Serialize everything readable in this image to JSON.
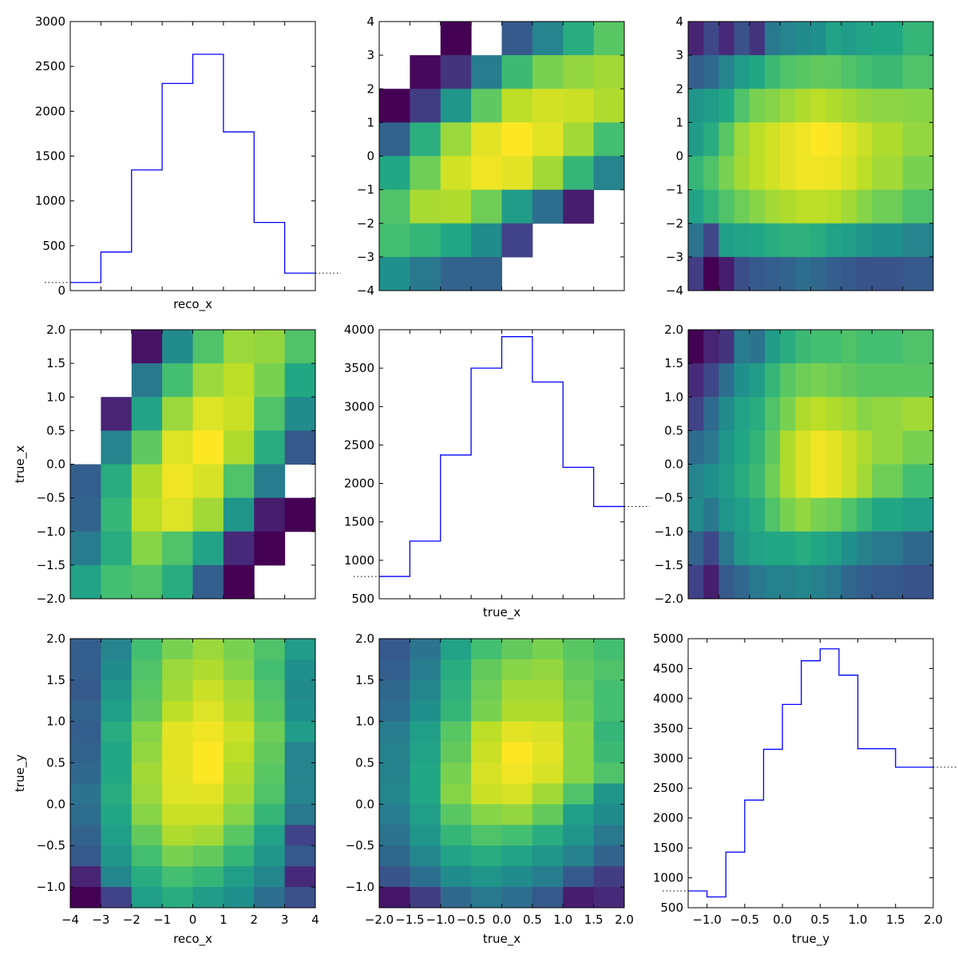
{
  "chart_data": [
    {
      "id": "p00",
      "type": "histogram",
      "xlabel": "reco_x",
      "ylabel": "",
      "xlim": [
        -4,
        4
      ],
      "ylim": [
        0,
        3000
      ],
      "show_x_ticklabels": false,
      "edges": [
        -4,
        -3,
        -2,
        -1,
        0,
        1,
        2,
        3,
        4
      ],
      "values": [
        90,
        430,
        1345,
        2310,
        2635,
        1770,
        760,
        195
      ],
      "overflow_left": 90,
      "overflow_right": 195,
      "yticks": [
        0,
        500,
        1000,
        1500,
        2000,
        2500,
        3000
      ],
      "ytick_labels": [
        "0",
        "500",
        "1000",
        "1500",
        "2000",
        "2500",
        "3000"
      ],
      "color": "#0000ff"
    },
    {
      "id": "p01",
      "type": "heatmap",
      "xlabel": "",
      "ylabel": "",
      "xlim": [
        -2,
        2
      ],
      "ylim": [
        -4,
        4
      ],
      "show_x_ticklabels": false,
      "yticks": [
        -4,
        -3,
        -2,
        -1,
        0,
        1,
        2,
        3,
        4
      ],
      "ytick_labels": [
        "−4",
        "−3",
        "−2",
        "−1",
        "0",
        "1",
        "2",
        "3",
        "4"
      ],
      "x_edges": [
        -2,
        -1.5,
        -1,
        -0.5,
        0,
        0.5,
        1,
        1.5,
        2
      ],
      "y_edges": [
        4,
        3,
        2,
        1,
        0,
        -1,
        -2,
        -3,
        -4
      ],
      "values": [
        [
          null,
          null,
          0.0,
          null,
          0.28,
          0.45,
          0.62,
          0.74
        ],
        [
          null,
          0.02,
          0.15,
          0.42,
          0.68,
          0.8,
          0.84,
          0.86
        ],
        [
          0.0,
          0.18,
          0.52,
          0.75,
          0.9,
          0.93,
          0.92,
          0.88
        ],
        [
          0.32,
          0.63,
          0.85,
          0.96,
          1.0,
          0.96,
          0.86,
          0.7
        ],
        [
          0.6,
          0.78,
          0.93,
          0.98,
          0.96,
          0.86,
          0.66,
          0.45
        ],
        [
          0.72,
          0.87,
          0.88,
          0.78,
          0.55,
          0.36,
          0.08,
          null
        ],
        [
          0.7,
          0.66,
          0.6,
          0.48,
          0.2,
          null,
          null,
          null
        ],
        [
          0.5,
          0.4,
          0.32,
          0.32,
          null,
          null,
          null,
          null
        ]
      ]
    },
    {
      "id": "p02",
      "type": "heatmap",
      "xlabel": "",
      "ylabel": "",
      "xlim": [
        -2,
        2
      ],
      "ylim": [
        -4,
        4
      ],
      "show_x_ticklabels": false,
      "yticks": [
        -4,
        -3,
        -2,
        -1,
        0,
        1,
        2,
        3,
        4
      ],
      "ytick_labels": [
        "−4",
        "−3",
        "−2",
        "−1",
        "0",
        "1",
        "2",
        "3",
        "4"
      ],
      "x_edges": [
        -2,
        -1.75,
        -1.5,
        -1.25,
        -1,
        -0.75,
        -0.5,
        -0.25,
        0,
        0.25,
        0.5,
        0.75,
        1,
        1.5,
        2
      ],
      "y_edges": [
        4,
        3,
        2,
        1,
        0,
        -1,
        -2,
        -3,
        -4
      ],
      "values": [
        [
          0.1,
          0.22,
          0.12,
          0.25,
          0.15,
          0.4,
          0.45,
          0.48,
          0.5,
          0.58,
          0.55,
          0.58,
          0.6,
          0.66
        ],
        [
          0.3,
          0.35,
          0.45,
          0.55,
          0.6,
          0.68,
          0.72,
          0.74,
          0.76,
          0.75,
          0.72,
          0.7,
          0.68,
          0.72
        ],
        [
          0.52,
          0.55,
          0.6,
          0.72,
          0.8,
          0.82,
          0.85,
          0.88,
          0.9,
          0.88,
          0.86,
          0.84,
          0.83,
          0.82
        ],
        [
          0.55,
          0.62,
          0.74,
          0.85,
          0.9,
          0.93,
          0.96,
          0.98,
          1.0,
          0.99,
          0.96,
          0.92,
          0.88,
          0.84
        ],
        [
          0.66,
          0.72,
          0.8,
          0.86,
          0.9,
          0.93,
          0.96,
          0.98,
          0.98,
          0.97,
          0.94,
          0.9,
          0.86,
          0.8
        ],
        [
          0.58,
          0.65,
          0.72,
          0.78,
          0.82,
          0.86,
          0.88,
          0.9,
          0.9,
          0.89,
          0.86,
          0.82,
          0.78,
          0.72
        ],
        [
          0.38,
          0.22,
          0.56,
          0.58,
          0.6,
          0.62,
          0.64,
          0.64,
          0.62,
          0.58,
          0.56,
          0.52,
          0.5,
          0.45
        ],
        [
          0.18,
          0.0,
          0.08,
          0.24,
          0.28,
          0.3,
          0.32,
          0.36,
          0.34,
          0.3,
          0.28,
          0.26,
          0.26,
          0.28
        ]
      ]
    },
    {
      "id": "p10",
      "type": "heatmap",
      "xlabel": "",
      "ylabel": "true_x",
      "xlim": [
        -4,
        4
      ],
      "ylim": [
        -2,
        2
      ],
      "show_x_ticklabels": false,
      "yticks": [
        -2,
        -1.5,
        -1,
        -0.5,
        0,
        0.5,
        1,
        1.5,
        2
      ],
      "ytick_labels": [
        "−2.0",
        "−1.5",
        "−1.0",
        "−0.5",
        "0.0",
        "0.5",
        "1.0",
        "1.5",
        "2.0"
      ],
      "x_edges": [
        -4,
        -3,
        -2,
        -1,
        0,
        1,
        2,
        3,
        4
      ],
      "y_edges": [
        2,
        1.5,
        1,
        0.5,
        0,
        -0.5,
        -1,
        -1.5,
        -2
      ],
      "values": [
        [
          null,
          null,
          0.05,
          0.48,
          0.72,
          0.85,
          0.84,
          0.72
        ],
        [
          null,
          null,
          0.4,
          0.7,
          0.85,
          0.9,
          0.8,
          0.6
        ],
        [
          null,
          0.1,
          0.58,
          0.85,
          0.95,
          0.92,
          0.72,
          0.48
        ],
        [
          null,
          0.45,
          0.75,
          0.95,
          1.0,
          0.88,
          0.62,
          0.28
        ],
        [
          0.3,
          0.62,
          0.88,
          0.98,
          0.94,
          0.72,
          0.42,
          null
        ],
        [
          0.32,
          0.66,
          0.9,
          0.95,
          0.86,
          0.52,
          0.08,
          0.0
        ],
        [
          0.42,
          0.62,
          0.82,
          0.72,
          0.58,
          0.12,
          0.0,
          null
        ],
        [
          0.58,
          0.7,
          0.72,
          0.62,
          0.3,
          0.0,
          null,
          null
        ]
      ]
    },
    {
      "id": "p11",
      "type": "histogram",
      "xlabel": "true_x",
      "ylabel": "",
      "xlim": [
        -2,
        2
      ],
      "ylim": [
        500,
        4000
      ],
      "show_x_ticklabels": false,
      "edges": [
        -2,
        -1.5,
        -1,
        -0.5,
        0,
        0.5,
        1,
        1.5,
        2
      ],
      "values": [
        790,
        1250,
        2370,
        3500,
        3910,
        3320,
        2210,
        1700
      ],
      "overflow_left": 790,
      "overflow_right": 1700,
      "yticks": [
        500,
        1000,
        1500,
        2000,
        2500,
        3000,
        3500,
        4000
      ],
      "ytick_labels": [
        "500",
        "1000",
        "1500",
        "2000",
        "2500",
        "3000",
        "3500",
        "4000"
      ],
      "color": "#0000ff"
    },
    {
      "id": "p12",
      "type": "heatmap",
      "xlabel": "",
      "ylabel": "",
      "xlim": [
        -2,
        2
      ],
      "ylim": [
        -2,
        2
      ],
      "show_x_ticklabels": false,
      "yticks": [
        -2,
        -1.5,
        -1,
        -0.5,
        0,
        0.5,
        1,
        1.5,
        2
      ],
      "ytick_labels": [
        "−2.0",
        "−1.5",
        "−1.0",
        "−0.5",
        "0.0",
        "0.5",
        "1.0",
        "1.5",
        "2.0"
      ],
      "x_edges": [
        -2,
        -1.75,
        -1.5,
        -1.25,
        -1,
        -0.75,
        -0.5,
        -0.25,
        0,
        0.25,
        0.5,
        0.75,
        1,
        1.5,
        2
      ],
      "y_edges": [
        2,
        1.5,
        1,
        0.5,
        0,
        -0.5,
        -1,
        -1.5,
        -2
      ],
      "values": [
        [
          0.0,
          0.1,
          0.15,
          0.42,
          0.38,
          0.55,
          0.62,
          0.68,
          0.7,
          0.7,
          0.72,
          0.7,
          0.7,
          0.72
        ],
        [
          0.12,
          0.22,
          0.36,
          0.5,
          0.55,
          0.66,
          0.74,
          0.78,
          0.8,
          0.78,
          0.76,
          0.74,
          0.74,
          0.74
        ],
        [
          0.2,
          0.35,
          0.48,
          0.58,
          0.62,
          0.72,
          0.8,
          0.88,
          0.9,
          0.88,
          0.86,
          0.82,
          0.84,
          0.86
        ],
        [
          0.35,
          0.4,
          0.52,
          0.6,
          0.65,
          0.75,
          0.88,
          0.94,
          0.98,
          0.96,
          0.92,
          0.88,
          0.84,
          0.8
        ],
        [
          0.45,
          0.5,
          0.55,
          0.62,
          0.68,
          0.78,
          0.88,
          0.94,
          0.98,
          0.96,
          0.92,
          0.86,
          0.78,
          0.7
        ],
        [
          0.48,
          0.4,
          0.52,
          0.56,
          0.62,
          0.72,
          0.8,
          0.84,
          0.8,
          0.78,
          0.72,
          0.66,
          0.6,
          0.56
        ],
        [
          0.32,
          0.22,
          0.4,
          0.54,
          0.58,
          0.6,
          0.6,
          0.62,
          0.6,
          0.56,
          0.5,
          0.44,
          0.4,
          0.34
        ],
        [
          0.2,
          0.08,
          0.28,
          0.34,
          0.4,
          0.44,
          0.44,
          0.46,
          0.44,
          0.4,
          0.34,
          0.3,
          0.28,
          0.26
        ]
      ]
    },
    {
      "id": "p20",
      "type": "heatmap",
      "xlabel": "reco_x",
      "ylabel": "true_y",
      "xlim": [
        -4,
        4
      ],
      "ylim": [
        -1.25,
        2
      ],
      "show_x_ticklabels": true,
      "xticks": [
        -4,
        -3,
        -2,
        -1,
        0,
        1,
        2,
        3,
        4
      ],
      "xtick_labels": [
        "−4",
        "−3",
        "−2",
        "−1",
        "0",
        "1",
        "2",
        "3",
        "4"
      ],
      "yticks": [
        -1,
        -0.5,
        0,
        0.5,
        1,
        1.5,
        2
      ],
      "ytick_labels": [
        "−1.0",
        "−0.5",
        "0.0",
        "0.5",
        "1.0",
        "1.5",
        "2.0"
      ],
      "x_edges": [
        -4,
        -3,
        -2,
        -1,
        0,
        1,
        2,
        3,
        4
      ],
      "y_edges": [
        2,
        1.75,
        1.5,
        1.25,
        1,
        0.75,
        0.5,
        0.25,
        0,
        -0.25,
        -0.5,
        -0.75,
        -1,
        -1.25
      ],
      "values": [
        [
          0.3,
          0.45,
          0.7,
          0.8,
          0.85,
          0.8,
          0.72,
          0.55
        ],
        [
          0.3,
          0.48,
          0.72,
          0.85,
          0.88,
          0.82,
          0.7,
          0.5
        ],
        [
          0.28,
          0.52,
          0.74,
          0.86,
          0.92,
          0.86,
          0.72,
          0.48
        ],
        [
          0.32,
          0.56,
          0.76,
          0.9,
          0.95,
          0.88,
          0.74,
          0.5
        ],
        [
          0.3,
          0.62,
          0.82,
          0.96,
          0.98,
          0.92,
          0.78,
          0.55
        ],
        [
          0.32,
          0.6,
          0.84,
          0.96,
          1.0,
          0.9,
          0.76,
          0.45
        ],
        [
          0.34,
          0.6,
          0.86,
          0.96,
          1.0,
          0.88,
          0.74,
          0.45
        ],
        [
          0.38,
          0.62,
          0.85,
          0.95,
          0.96,
          0.86,
          0.72,
          0.45
        ],
        [
          0.36,
          0.6,
          0.82,
          0.92,
          0.92,
          0.82,
          0.66,
          0.4
        ],
        [
          0.32,
          0.56,
          0.76,
          0.88,
          0.86,
          0.74,
          0.58,
          0.2
        ],
        [
          0.28,
          0.52,
          0.7,
          0.8,
          0.76,
          0.66,
          0.52,
          0.28
        ],
        [
          0.1,
          0.46,
          0.62,
          0.7,
          0.66,
          0.56,
          0.46,
          0.12
        ],
        [
          0.0,
          0.2,
          0.56,
          0.62,
          0.55,
          0.5,
          0.36,
          0.25
        ],
        [
          0.24,
          0.34,
          0.5,
          0.56,
          0.5,
          0.45,
          0.34,
          0.1
        ]
      ]
    },
    {
      "id": "p21",
      "type": "heatmap",
      "xlabel": "true_x",
      "ylabel": "",
      "xlim": [
        -2,
        2
      ],
      "ylim": [
        -1.25,
        2
      ],
      "show_x_ticklabels": true,
      "xticks": [
        -2,
        -1.5,
        -1,
        -0.5,
        0,
        0.5,
        1,
        1.5,
        2
      ],
      "xtick_labels": [
        "−2.0",
        "−1.5",
        "−1.0",
        "−0.5",
        "0.0",
        "0.5",
        "1.0",
        "1.5",
        "2.0"
      ],
      "yticks": [
        -1,
        -0.5,
        0,
        0.5,
        1,
        1.5,
        2
      ],
      "ytick_labels": [
        "−1.0",
        "−0.5",
        "0.0",
        "0.5",
        "1.0",
        "1.5",
        "2.0"
      ],
      "x_edges": [
        -2,
        -1.5,
        -1,
        -0.5,
        0,
        0.5,
        1,
        1.5,
        2
      ],
      "y_edges": [
        2,
        1.75,
        1.5,
        1.25,
        1,
        0.75,
        0.5,
        0.25,
        0,
        -0.25,
        -0.5,
        -0.75,
        -1,
        -1.25
      ],
      "values": [
        [
          0.28,
          0.38,
          0.58,
          0.7,
          0.76,
          0.8,
          0.74,
          0.7
        ],
        [
          0.3,
          0.42,
          0.62,
          0.76,
          0.82,
          0.84,
          0.76,
          0.72
        ],
        [
          0.34,
          0.46,
          0.64,
          0.78,
          0.86,
          0.86,
          0.78,
          0.7
        ],
        [
          0.36,
          0.5,
          0.66,
          0.8,
          0.88,
          0.88,
          0.8,
          0.7
        ],
        [
          0.42,
          0.56,
          0.74,
          0.9,
          0.96,
          0.94,
          0.82,
          0.66
        ],
        [
          0.44,
          0.58,
          0.76,
          0.92,
          1.0,
          0.96,
          0.82,
          0.68
        ],
        [
          0.44,
          0.6,
          0.8,
          0.94,
          0.98,
          0.94,
          0.82,
          0.72
        ],
        [
          0.46,
          0.6,
          0.82,
          0.92,
          0.94,
          0.86,
          0.72,
          0.52
        ],
        [
          0.42,
          0.56,
          0.74,
          0.82,
          0.84,
          0.76,
          0.56,
          0.48
        ],
        [
          0.38,
          0.52,
          0.66,
          0.72,
          0.7,
          0.62,
          0.52,
          0.4
        ],
        [
          0.34,
          0.46,
          0.58,
          0.62,
          0.58,
          0.52,
          0.44,
          0.32
        ],
        [
          0.26,
          0.36,
          0.48,
          0.52,
          0.48,
          0.42,
          0.28,
          0.18
        ],
        [
          0.06,
          0.18,
          0.34,
          0.4,
          0.36,
          0.28,
          0.08,
          0.12
        ],
        [
          0.24,
          0.28,
          0.36,
          0.36,
          0.28,
          0.24,
          0.06,
          0.0
        ]
      ]
    },
    {
      "id": "p22",
      "type": "histogram",
      "xlabel": "true_y",
      "ylabel": "",
      "xlim": [
        -1.25,
        2
      ],
      "ylim": [
        500,
        5000
      ],
      "show_x_ticklabels": true,
      "xticks": [
        -1,
        -0.5,
        0,
        0.5,
        1,
        1.5,
        2
      ],
      "xtick_labels": [
        "−1.0",
        "−0.5",
        "0.0",
        "0.5",
        "1.0",
        "1.5",
        "2.0"
      ],
      "edges": [
        -1.25,
        -1,
        -0.75,
        -0.5,
        -0.25,
        0,
        0.25,
        0.5,
        0.75,
        1,
        1.5,
        2
      ],
      "values": [
        780,
        680,
        1430,
        2300,
        3150,
        3900,
        4630,
        4830,
        4390,
        3160,
        2850
      ],
      "overflow_left": 780,
      "overflow_right": 2850,
      "yticks": [
        500,
        1000,
        1500,
        2000,
        2500,
        3000,
        3500,
        4000,
        4500,
        5000
      ],
      "ytick_labels": [
        "500",
        "1000",
        "1500",
        "2000",
        "2500",
        "3000",
        "3500",
        "4000",
        "4500",
        "5000"
      ],
      "color": "#0000ff"
    }
  ]
}
